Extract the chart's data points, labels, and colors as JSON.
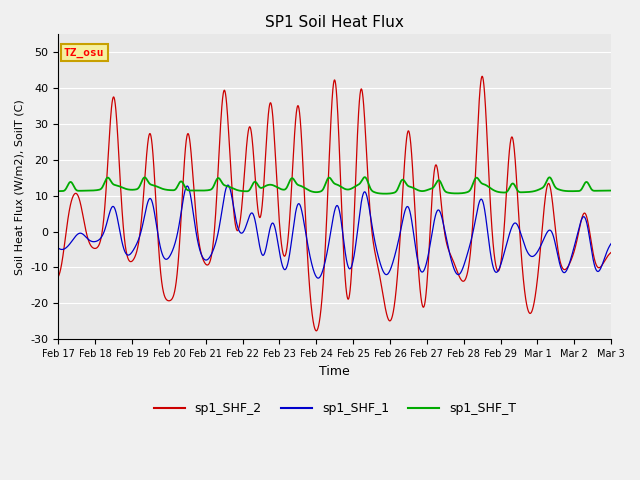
{
  "title": "SP1 Soil Heat Flux",
  "xlabel": "Time",
  "ylabel": "Soil Heat Flux (W/m2), SoilT (C)",
  "ylim": [
    -30,
    55
  ],
  "xlim": [
    0,
    15
  ],
  "plot_bg": "#e8e8e8",
  "fig_bg": "#f0f0f0",
  "tz_label": "TZ_osu",
  "tz_bg": "#f5f0a0",
  "tz_border": "#c8a000",
  "line_colors": {
    "sp1_SHF_2": "#cc0000",
    "sp1_SHF_1": "#0000cc",
    "sp1_SHF_T": "#00aa00"
  },
  "xtick_labels": [
    "Feb 17",
    "Feb 18",
    "Feb 19",
    "Feb 20",
    "Feb 21",
    "Feb 22",
    "Feb 23",
    "Feb 24",
    "Feb 25",
    "Feb 26",
    "Feb 27",
    "Feb 28",
    "Feb 29",
    "Mar 1",
    "Mar 2",
    "Mar 3"
  ],
  "xtick_positions": [
    0,
    1,
    2,
    3,
    4,
    5,
    6,
    7,
    8,
    9,
    10,
    11,
    12,
    13,
    14,
    15
  ],
  "ytick_positions": [
    -30,
    -20,
    -10,
    0,
    10,
    20,
    30,
    40,
    50
  ],
  "grid_color": "#ffffff",
  "legend_labels": [
    "sp1_SHF_2",
    "sp1_SHF_1",
    "sp1_SHF_T"
  ]
}
